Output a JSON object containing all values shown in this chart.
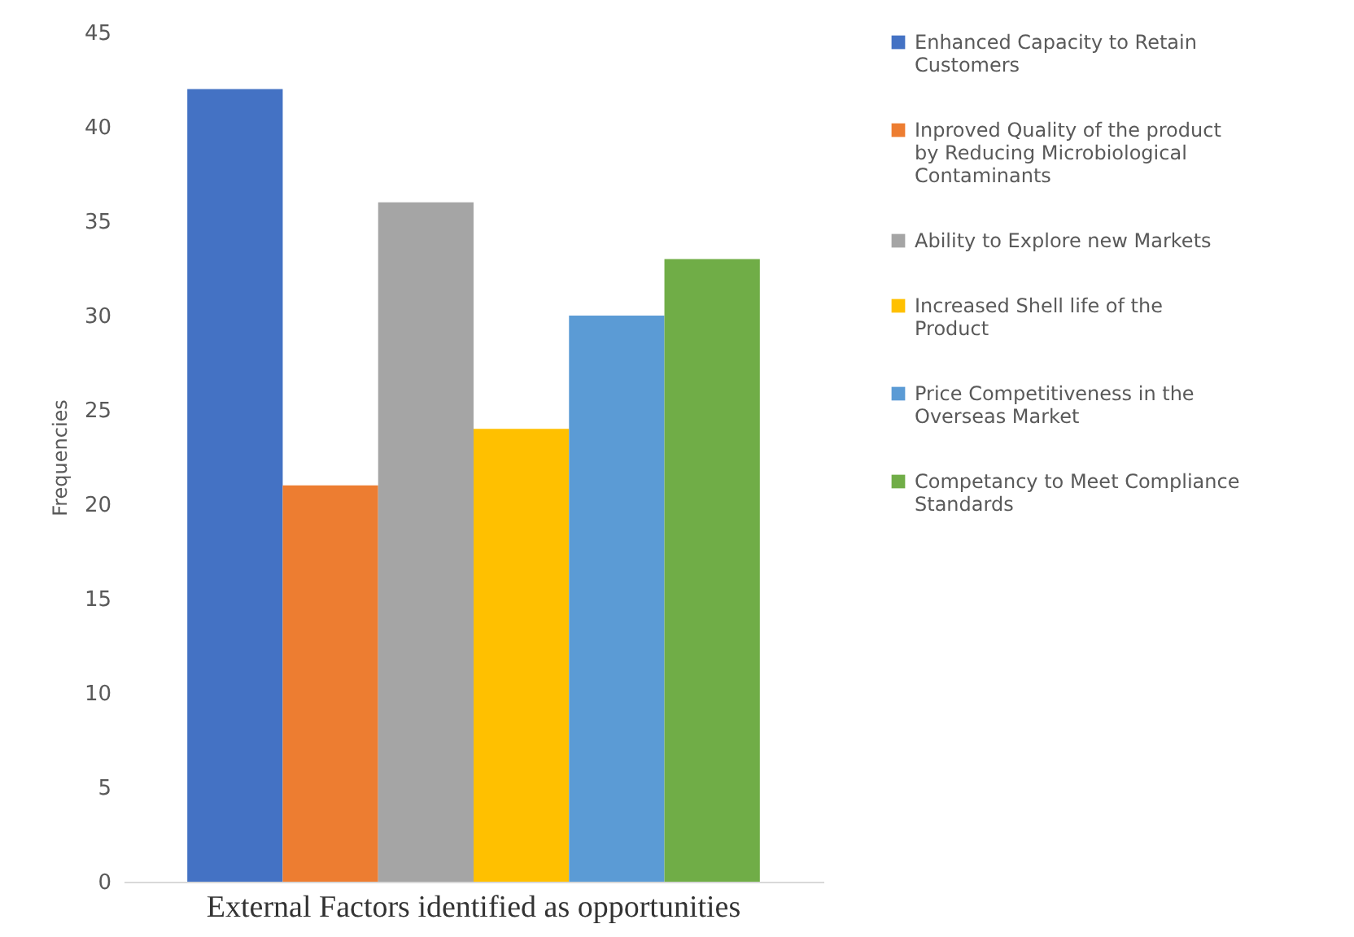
{
  "chart_data": {
    "type": "bar",
    "ylabel": "Frequencies",
    "categories": [
      "External  Factors identified  as opportunities"
    ],
    "series": [
      {
        "name": "Enhanced Capacity to Retain Customers",
        "color": "#4472c4",
        "values": [
          42
        ]
      },
      {
        "name": "Inproved Quality of the product by Reducing Microbiological Contaminants",
        "color": "#ed7d31",
        "values": [
          21
        ]
      },
      {
        "name": "Ability to Explore new Markets",
        "color": "#a5a5a5",
        "values": [
          36
        ]
      },
      {
        "name": "Increased Shell life of the Product",
        "color": "#ffc000",
        "values": [
          24
        ]
      },
      {
        "name": "Price Competitiveness in the Overseas Market",
        "color": "#5b9bd5",
        "values": [
          30
        ]
      },
      {
        "name": "Competancy to Meet Compliance Standards",
        "color": "#70ad47",
        "values": [
          33
        ]
      }
    ],
    "ylim": [
      0,
      45
    ],
    "yticks": [
      0,
      5,
      10,
      15,
      20,
      25,
      30,
      35,
      40,
      45
    ],
    "grid": false,
    "legend": "right"
  }
}
